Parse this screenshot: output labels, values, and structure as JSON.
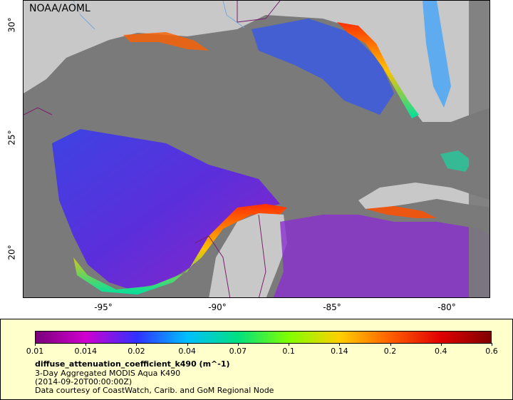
{
  "map": {
    "org_label": "NOAA/AOML",
    "lat_ticks": [
      "30°",
      "25°",
      "20°"
    ],
    "lon_ticks": [
      "-95°",
      "-90°",
      "-85°",
      "-80°"
    ],
    "colors": {
      "land": "#c8c8c8",
      "no_data": "#7a7a7a",
      "borders": "#7a1e6e",
      "rivers": "#7aa8d8"
    }
  },
  "legend": {
    "colorbar_ticks": [
      "0.01",
      "0.014",
      "0.02",
      "0.04",
      "0.07",
      "0.1",
      "0.14",
      "0.2",
      "0.4",
      "0.6"
    ],
    "colorbar_colors": [
      "#7a007a",
      "#d000d0",
      "#3030ff",
      "#00c0ff",
      "#00e080",
      "#80ff00",
      "#ffd000",
      "#ff6000",
      "#e00000",
      "#800000"
    ],
    "variable": "diffuse_attenuation_coefficient_k490 (m^-1)",
    "line1": "3-Day Aggregated MODIS Aqua K490",
    "line2": "(2014-09-20T00:00:00Z)",
    "line3": "Data courtesy of CoastWatch, Carib. and GoM Regional Node"
  }
}
